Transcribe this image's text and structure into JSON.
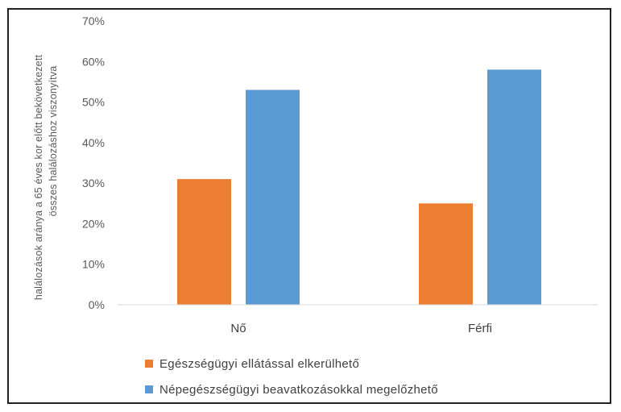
{
  "chart_data": {
    "type": "bar",
    "categories": [
      "Nő",
      "Férfi"
    ],
    "series": [
      {
        "name": "Egészségügyi ellátással elkerülhető",
        "values": [
          31,
          25
        ],
        "color": "#ED7D31"
      },
      {
        "name": "Népegészségügyi beavatkozásokkal megelőzhető",
        "values": [
          53,
          58
        ],
        "color": "#5B9BD5"
      }
    ],
    "ylim": [
      0,
      70
    ],
    "yticks": [
      "0%",
      "10%",
      "20%",
      "30%",
      "40%",
      "50%",
      "60%",
      "70%"
    ],
    "ylabel_lines": [
      "halálozások aránya a 65 éves kor előtt bekövetkezett",
      "összes halálozáshoz viszonyítva"
    ],
    "grid": false,
    "legend_position": "bottom"
  }
}
